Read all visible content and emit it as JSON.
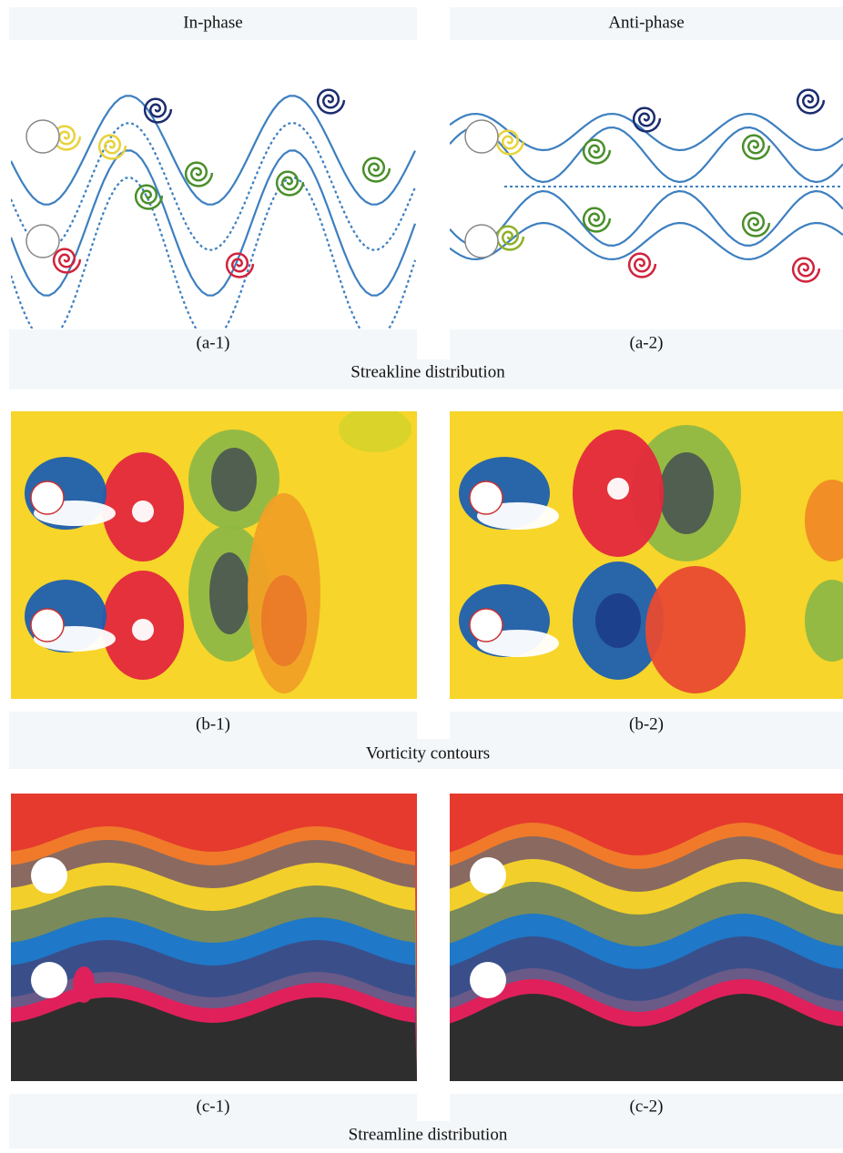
{
  "header": {
    "columns": [
      "In-phase",
      "Anti-phase"
    ]
  },
  "rows": [
    {
      "panels": [
        {
          "label": "(a-1)"
        },
        {
          "label": "(a-2)"
        }
      ],
      "caption": "Streakline distribution"
    },
    {
      "panels": [
        {
          "label": "(b-1)"
        },
        {
          "label": "(b-2)"
        }
      ],
      "caption": "Vorticity contours"
    },
    {
      "panels": [
        {
          "label": "(c-1)"
        },
        {
          "label": "(c-2)"
        }
      ],
      "caption": "Streamline distribution"
    }
  ]
}
